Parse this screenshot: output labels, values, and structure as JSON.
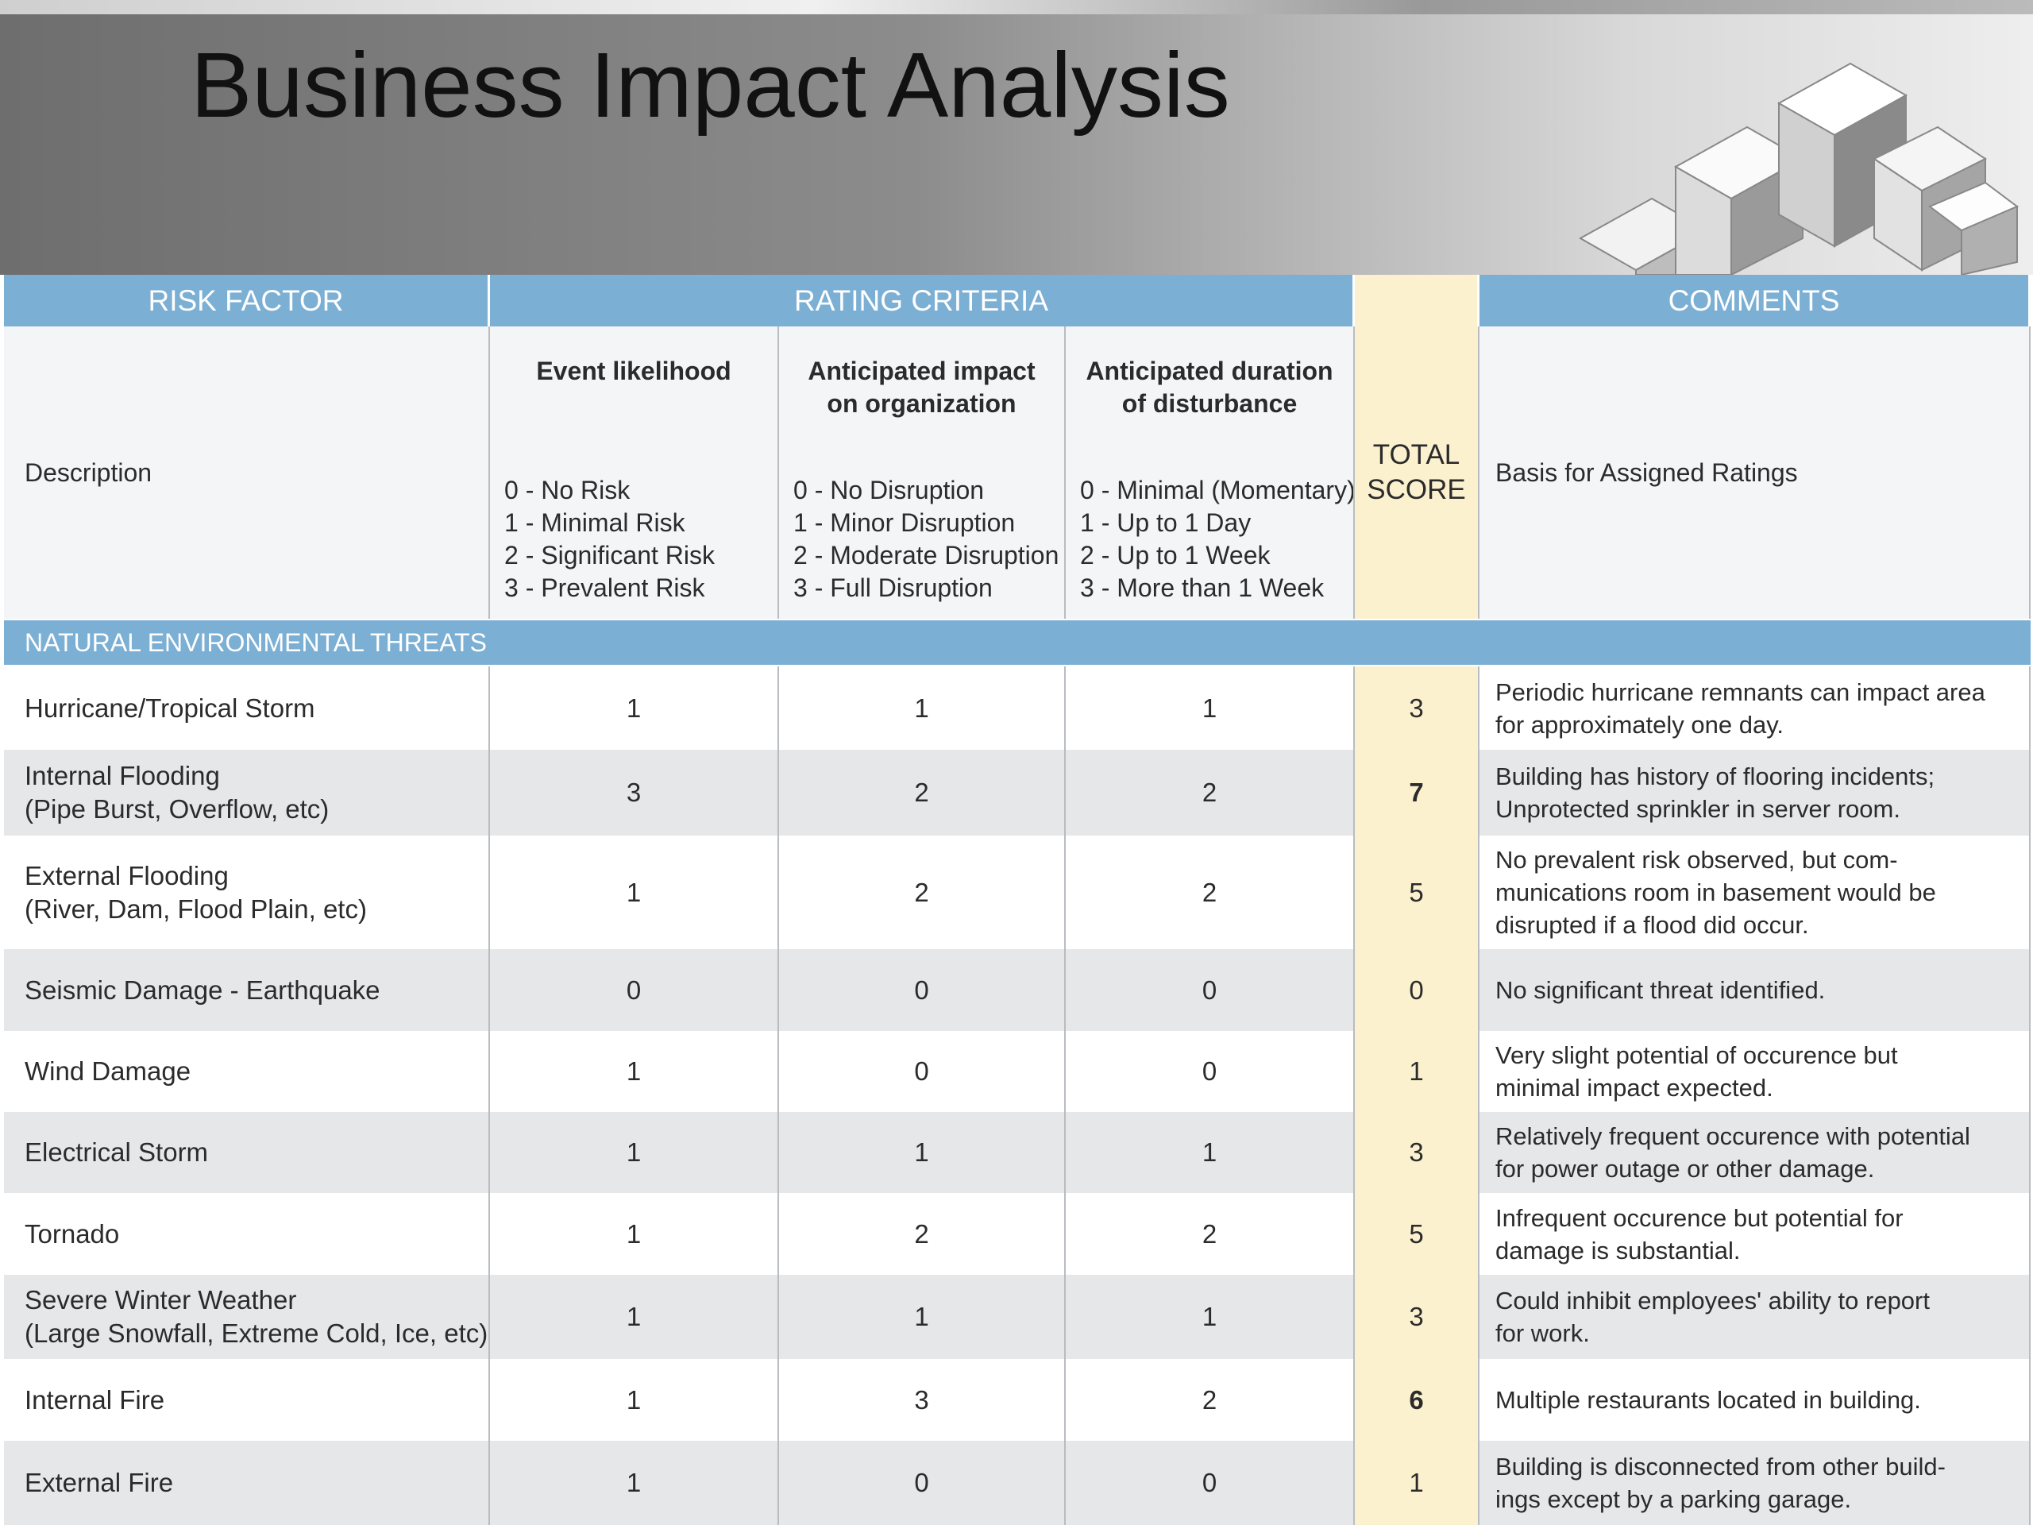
{
  "header": {
    "title": "Business Impact Analysis"
  },
  "table": {
    "groups": [
      "RISK FACTOR",
      "RATING CRITERIA",
      "COMMENTS"
    ],
    "description_label": "Description",
    "criteria": [
      {
        "heading": [
          "Event likelihood"
        ],
        "levels": [
          "0 - No Risk",
          "1 - Minimal Risk",
          "2 - Significant Risk",
          "3 - Prevalent Risk"
        ]
      },
      {
        "heading": [
          "Anticipated impact",
          "on organization"
        ],
        "levels": [
          "0 - No Disruption",
          "1 - Minor  Disruption",
          "2 - Moderate Disruption",
          "3 - Full Disruption"
        ]
      },
      {
        "heading": [
          "Anticipated duration",
          "of disturbance"
        ],
        "levels": [
          "0 - Minimal (Momentary)",
          "1 - Up to 1 Day",
          "2 - Up to 1 Week",
          "3 - More than 1 Week"
        ]
      }
    ],
    "total_label": [
      "TOTAL",
      "SCORE"
    ],
    "comments_label": "Basis for Assigned Ratings",
    "section": "NATURAL ENVIRONMENTAL THREATS",
    "rows": [
      {
        "factor": [
          "Hurricane/Tropical Storm"
        ],
        "likelihood": 1,
        "impact": 1,
        "duration": 1,
        "total": 3,
        "bold": false,
        "comment": [
          "Periodic hurricane remnants can impact area",
          "for approximately one day."
        ]
      },
      {
        "factor": [
          "Internal Flooding",
          "(Pipe Burst, Overflow, etc)"
        ],
        "likelihood": 3,
        "impact": 2,
        "duration": 2,
        "total": 7,
        "bold": true,
        "comment": [
          "Building has history of flooring incidents;",
          "Unprotected sprinkler in server room."
        ]
      },
      {
        "factor": [
          "External Flooding",
          "(River, Dam, Flood Plain, etc)"
        ],
        "likelihood": 1,
        "impact": 2,
        "duration": 2,
        "total": 5,
        "bold": false,
        "comment": [
          "No prevalent risk observed, but com-",
          "munications room in basement would be",
          "disrupted if a flood did occur."
        ]
      },
      {
        "factor": [
          "Seismic Damage - Earthquake"
        ],
        "likelihood": 0,
        "impact": 0,
        "duration": 0,
        "total": 0,
        "bold": false,
        "comment": [
          "No significant threat identified."
        ]
      },
      {
        "factor": [
          "Wind Damage"
        ],
        "likelihood": 1,
        "impact": 0,
        "duration": 0,
        "total": 1,
        "bold": false,
        "comment": [
          "Very slight potential of occurence but",
          "minimal impact expected."
        ]
      },
      {
        "factor": [
          "Electrical Storm"
        ],
        "likelihood": 1,
        "impact": 1,
        "duration": 1,
        "total": 3,
        "bold": false,
        "comment": [
          "Relatively frequent occurence with potential",
          "for power outage or other damage."
        ]
      },
      {
        "factor": [
          "Tornado"
        ],
        "likelihood": 1,
        "impact": 2,
        "duration": 2,
        "total": 5,
        "bold": false,
        "comment": [
          "Infrequent occurence but potential for",
          "damage is substantial."
        ]
      },
      {
        "factor": [
          "Severe Winter Weather",
          "(Large Snowfall, Extreme Cold, Ice, etc)"
        ],
        "likelihood": 1,
        "impact": 1,
        "duration": 1,
        "total": 3,
        "bold": false,
        "comment": [
          "Could inhibit employees' ability to report",
          "for work."
        ]
      },
      {
        "factor": [
          "Internal Fire"
        ],
        "likelihood": 1,
        "impact": 3,
        "duration": 2,
        "total": 6,
        "bold": true,
        "comment": [
          "Multiple restaurants located in building."
        ]
      },
      {
        "factor": [
          "External Fire"
        ],
        "likelihood": 1,
        "impact": 0,
        "duration": 0,
        "total": 1,
        "bold": false,
        "comment": [
          "Building is disconnected from other build-",
          "ings except by a parking garage."
        ]
      }
    ]
  }
}
